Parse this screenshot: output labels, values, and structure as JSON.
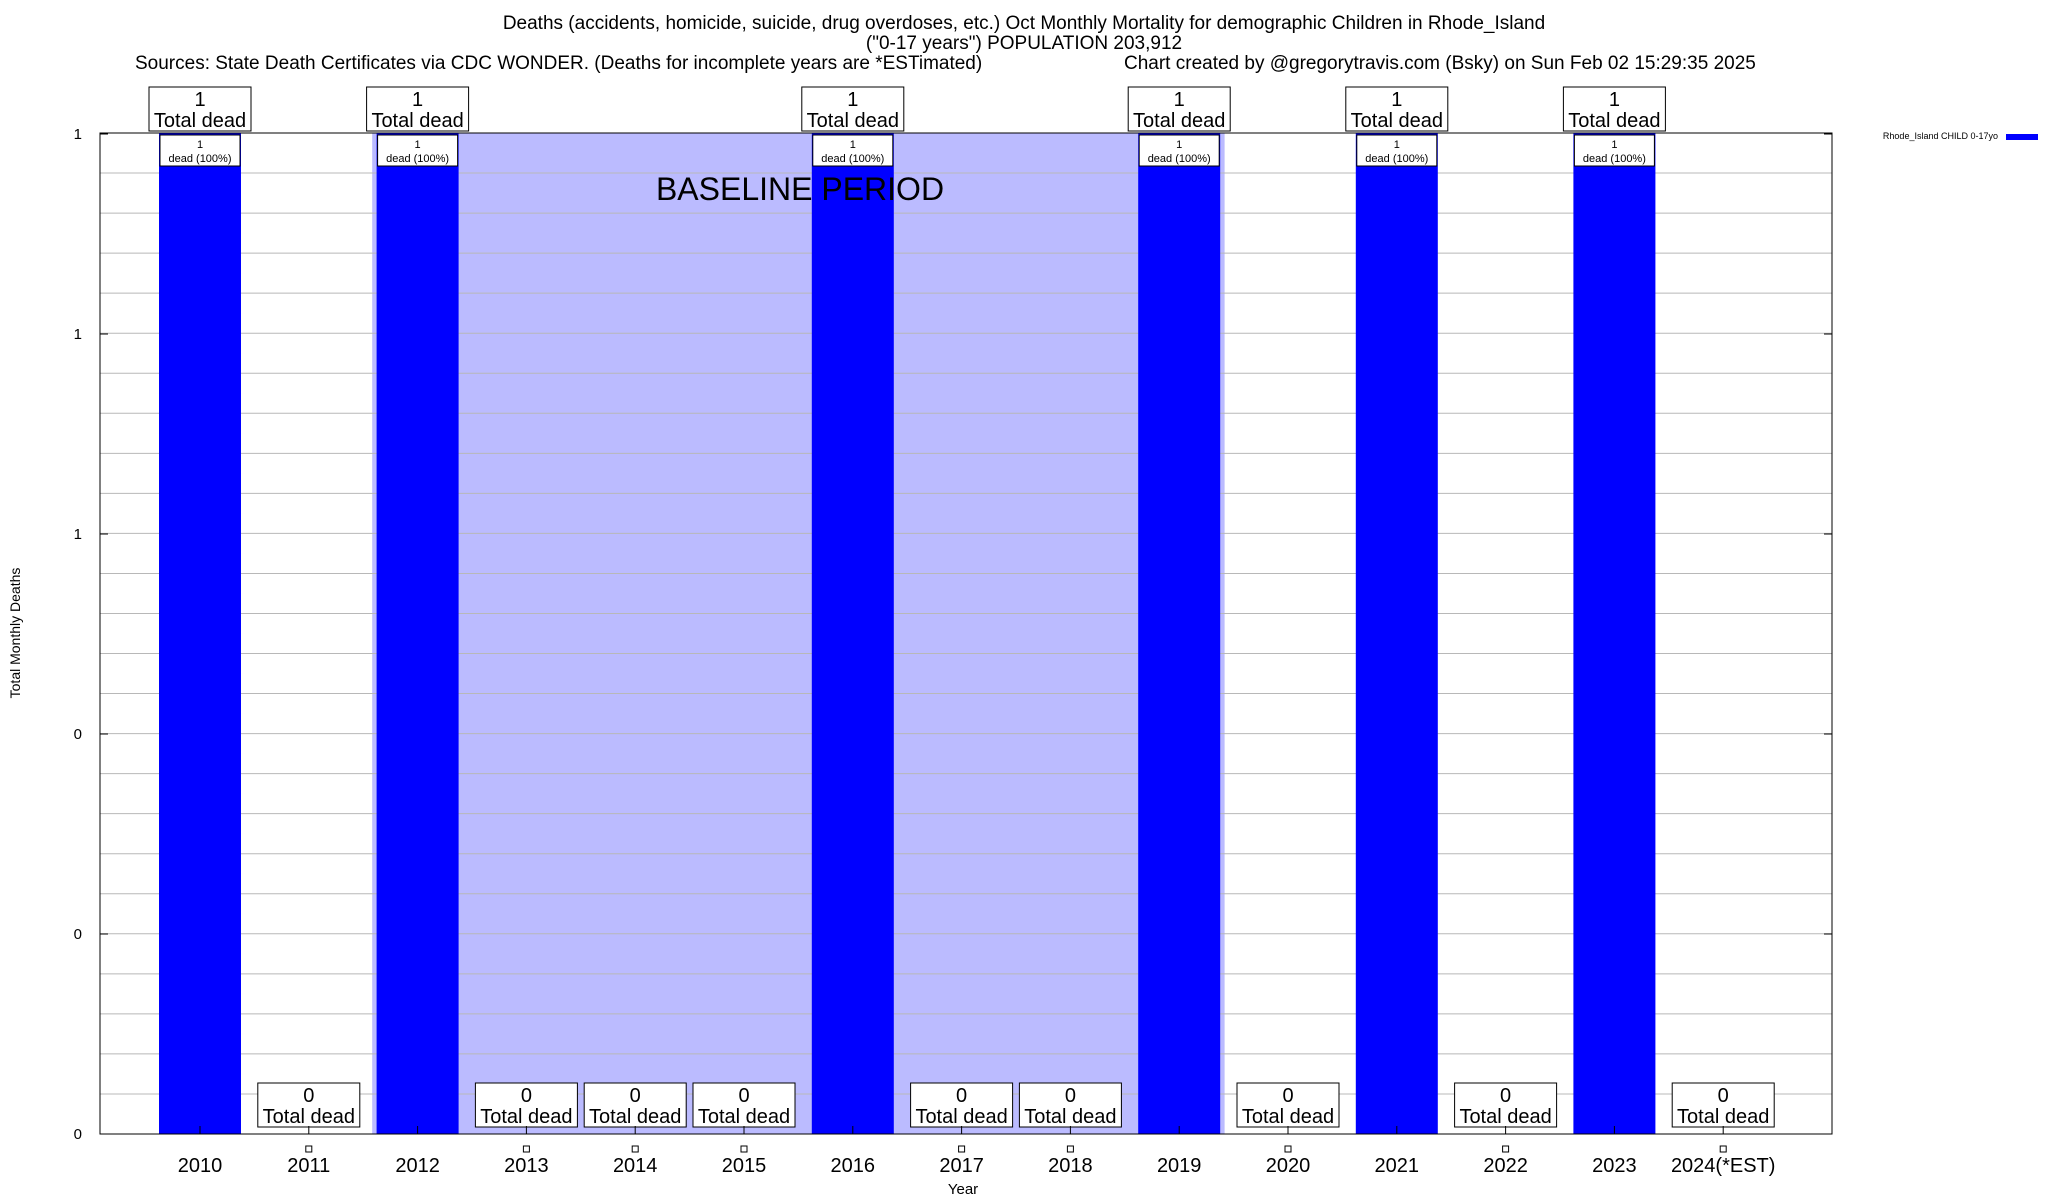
{
  "chart_data": {
    "type": "bar",
    "title": "Deaths (accidents, homicide, suicide, drug overdoses, etc.) Oct Monthly Mortality for demographic Children in Rhode_Island",
    "subtitle": "(\"0-17 years\") POPULATION 203,912",
    "sources": "Sources: State Death Certificates via CDC WONDER. (Deaths for incomplete years are *ESTimated)",
    "credit": "Chart created by @gregorytravis.com (Bsky) on Sun Feb 02 15:29:35 2025",
    "xlabel": "Year",
    "ylabel": "Total Monthly Deaths",
    "ylim": [
      0,
      1
    ],
    "y_tick_labels": [
      "0",
      "0",
      "0",
      "1",
      "1",
      "1"
    ],
    "grid": true,
    "legend": {
      "position": "top-right",
      "label": "Rhode_Island CHILD 0-17yo"
    },
    "categories": [
      "2010",
      "2011",
      "2012",
      "2013",
      "2014",
      "2015",
      "2016",
      "2017",
      "2018",
      "2019",
      "2020",
      "2021",
      "2022",
      "2023",
      "2024(*EST)"
    ],
    "series": [
      {
        "name": "Rhode_Island CHILD 0-17yo",
        "color": "#0000ff",
        "values": [
          1,
          0,
          1,
          0,
          0,
          0,
          1,
          0,
          0,
          1,
          0,
          1,
          0,
          1,
          0
        ]
      }
    ],
    "total_label": "Total dead",
    "bar_label": "dead (100%)",
    "baseline_period": {
      "label": "BASELINE PERIOD",
      "start": "2012",
      "end": "2019",
      "color": "#bbbbff"
    }
  }
}
